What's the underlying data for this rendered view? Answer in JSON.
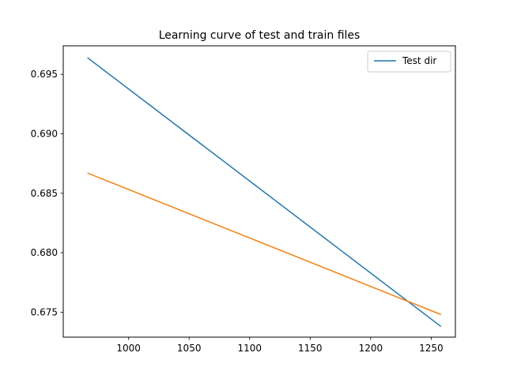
{
  "chart_data": {
    "type": "line",
    "title": "Learning curve of test and train files",
    "xlabel": "",
    "ylabel": "",
    "xlim": [
      946,
      1270
    ],
    "ylim": [
      0.6729,
      0.6974
    ],
    "xticks": [
      1000,
      1050,
      1100,
      1150,
      1200,
      1250
    ],
    "yticks": [
      0.675,
      0.68,
      0.685,
      0.69,
      0.695
    ],
    "ytick_labels": [
      "0.675",
      "0.680",
      "0.685",
      "0.690",
      "0.695"
    ],
    "grid": false,
    "legend": {
      "placement": "top-right"
    },
    "series": [
      {
        "name": "Test dir",
        "color": "#1f77b4",
        "x": [
          966,
          1258
        ],
        "y": [
          0.6964,
          0.6738
        ]
      },
      {
        "color": "#ff7f0e",
        "x": [
          966,
          1258
        ],
        "y": [
          0.6867,
          0.6748
        ]
      }
    ]
  }
}
